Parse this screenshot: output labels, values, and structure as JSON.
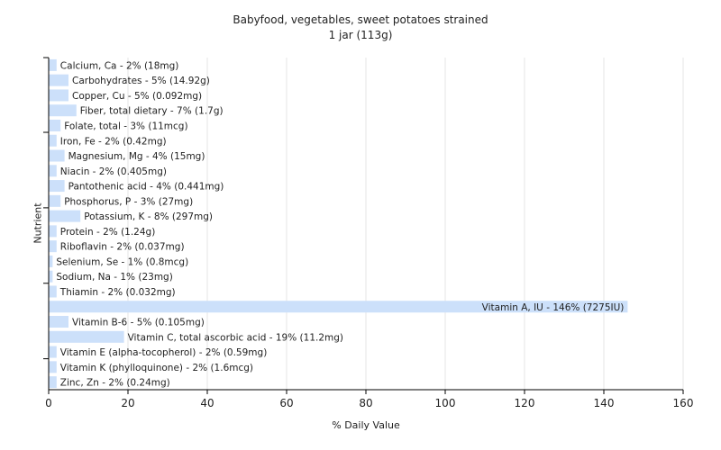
{
  "chart_data": {
    "type": "bar",
    "orientation": "horizontal",
    "title": "Babyfood, vegetables, sweet potatoes strained",
    "subtitle": "1 jar (113g)",
    "xlabel": "% Daily Value",
    "ylabel": "Nutrient",
    "xlim": [
      0,
      160
    ],
    "xticks": [
      0,
      20,
      40,
      60,
      80,
      100,
      120,
      140,
      160
    ],
    "grid": true,
    "bar_color": "#cce0fa",
    "categories": [
      "Calcium, Ca",
      "Carbohydrates",
      "Copper, Cu",
      "Fiber, total dietary",
      "Folate, total",
      "Iron, Fe",
      "Magnesium, Mg",
      "Niacin",
      "Pantothenic acid",
      "Phosphorus, P",
      "Potassium, K",
      "Protein",
      "Riboflavin",
      "Selenium, Se",
      "Sodium, Na",
      "Thiamin",
      "Vitamin A, IU",
      "Vitamin B-6",
      "Vitamin C, total ascorbic acid",
      "Vitamin E (alpha-tocopherol)",
      "Vitamin K (phylloquinone)",
      "Zinc, Zn"
    ],
    "values": [
      2,
      5,
      5,
      7,
      3,
      2,
      4,
      2,
      4,
      3,
      8,
      2,
      2,
      1,
      1,
      2,
      146,
      5,
      19,
      2,
      2,
      2
    ],
    "labels": [
      "Calcium, Ca - 2% (18mg)",
      "Carbohydrates - 5% (14.92g)",
      "Copper, Cu - 5% (0.092mg)",
      "Fiber, total dietary - 7% (1.7g)",
      "Folate, total - 3% (11mcg)",
      "Iron, Fe - 2% (0.42mg)",
      "Magnesium, Mg - 4% (15mg)",
      "Niacin - 2% (0.405mg)",
      "Pantothenic acid - 4% (0.441mg)",
      "Phosphorus, P - 3% (27mg)",
      "Potassium, K - 8% (297mg)",
      "Protein - 2% (1.24g)",
      "Riboflavin - 2% (0.037mg)",
      "Selenium, Se - 1% (0.8mcg)",
      "Sodium, Na - 1% (23mg)",
      "Thiamin - 2% (0.032mg)",
      "Vitamin A, IU - 146% (7275IU)",
      "Vitamin B-6 - 5% (0.105mg)",
      "Vitamin C, total ascorbic acid - 19% (11.2mg)",
      "Vitamin E (alpha-tocopherol) - 2% (0.59mg)",
      "Vitamin K (phylloquinone) - 2% (1.6mcg)",
      "Zinc, Zn - 2% (0.24mg)"
    ]
  }
}
